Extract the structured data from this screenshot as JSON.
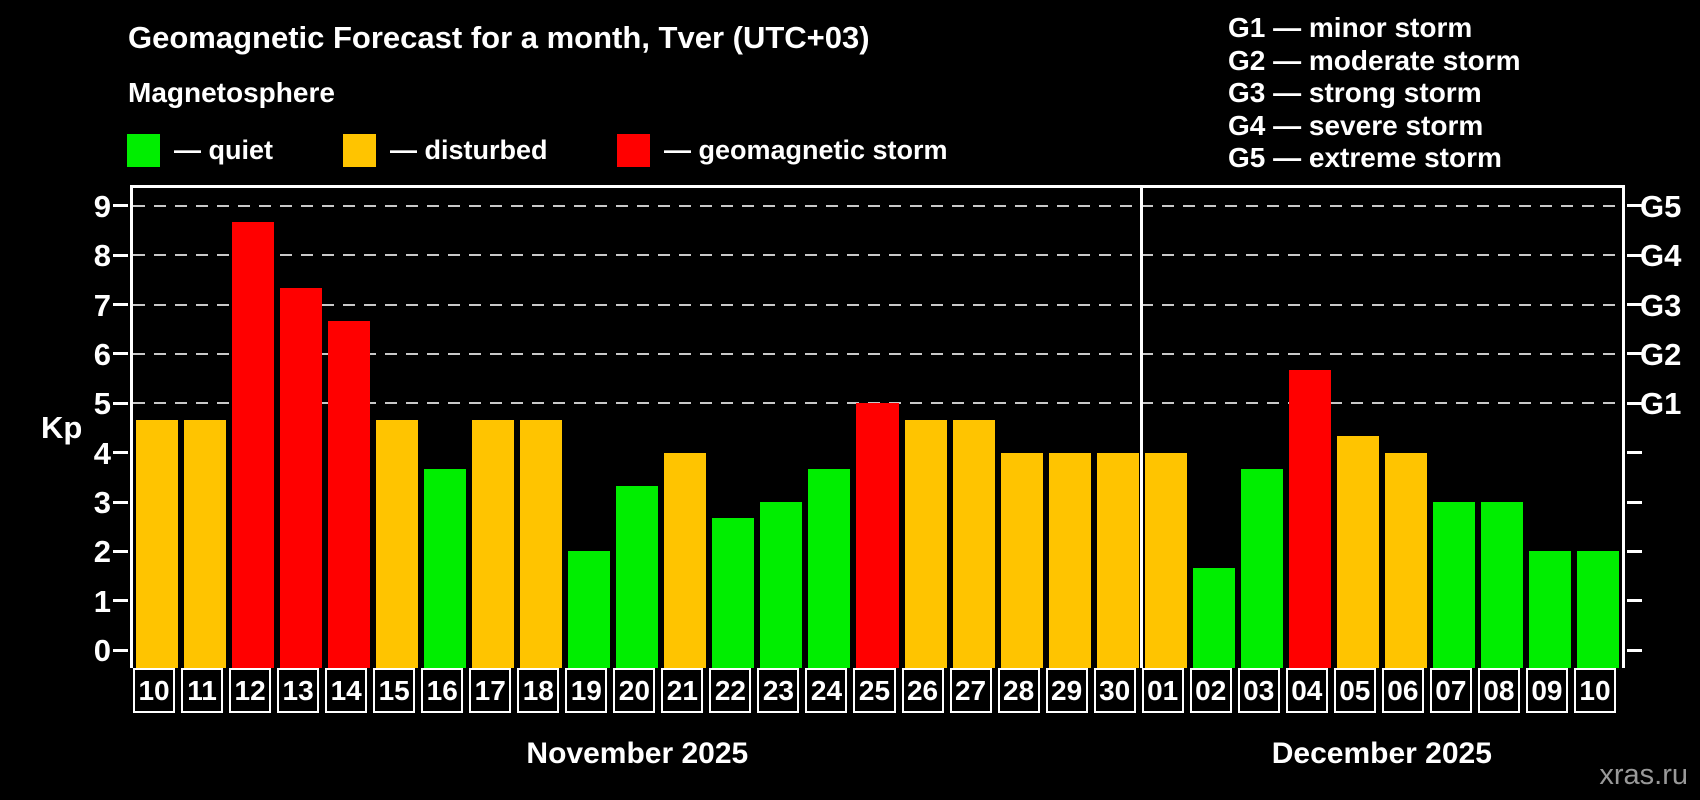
{
  "header": {
    "title": "Geomagnetic Forecast for a month, Tver (UTC+03)",
    "subtitle": "Magnetosphere",
    "legend": [
      {
        "key": "quiet",
        "label": "— quiet",
        "color": "#00ee00"
      },
      {
        "key": "disturbed",
        "label": "— disturbed",
        "color": "#ffc400"
      },
      {
        "key": "storm",
        "label": "— geomagnetic storm",
        "color": "#ff0000"
      }
    ],
    "storm_scale": [
      "G1 — minor storm",
      "G2 — moderate storm",
      "G3 — strong storm",
      "G4 — severe storm",
      "G5 — extreme storm"
    ]
  },
  "chart_data": {
    "type": "bar",
    "ylabel": "Kp",
    "ylim": [
      -0.36,
      9.36
    ],
    "y_ticks": [
      0,
      1,
      2,
      3,
      4,
      5,
      6,
      7,
      8,
      9
    ],
    "gridlines_at": [
      5,
      6,
      7,
      8,
      9
    ],
    "grid_style": "dashed",
    "legend_position": "top",
    "right_axis": [
      {
        "label": "G5",
        "kp": 9
      },
      {
        "label": "G4",
        "kp": 8
      },
      {
        "label": "G3",
        "kp": 7
      },
      {
        "label": "G2",
        "kp": 6
      },
      {
        "label": "G1",
        "kp": 5
      }
    ],
    "months": [
      {
        "label": "November 2025",
        "days": 21
      },
      {
        "label": "December 2025",
        "days": 10
      }
    ],
    "categories": [
      "10",
      "11",
      "12",
      "13",
      "14",
      "15",
      "16",
      "17",
      "18",
      "19",
      "20",
      "21",
      "22",
      "23",
      "24",
      "25",
      "26",
      "27",
      "28",
      "29",
      "30",
      "01",
      "02",
      "03",
      "04",
      "05",
      "06",
      "07",
      "08",
      "09",
      "10"
    ],
    "values": [
      4.67,
      4.67,
      8.67,
      7.33,
      6.67,
      4.67,
      3.67,
      4.67,
      4.67,
      2.0,
      3.33,
      4.0,
      2.67,
      3.0,
      3.67,
      5.0,
      4.67,
      4.67,
      4.0,
      4.0,
      4.0,
      4.0,
      1.67,
      3.67,
      5.67,
      4.33,
      4.0,
      3.0,
      3.0,
      2.0,
      2.0
    ],
    "statuses": [
      "disturbed",
      "disturbed",
      "storm",
      "storm",
      "storm",
      "disturbed",
      "quiet",
      "disturbed",
      "disturbed",
      "quiet",
      "quiet",
      "disturbed",
      "quiet",
      "quiet",
      "quiet",
      "storm",
      "disturbed",
      "disturbed",
      "disturbed",
      "disturbed",
      "disturbed",
      "disturbed",
      "quiet",
      "quiet",
      "storm",
      "disturbed",
      "disturbed",
      "quiet",
      "quiet",
      "quiet",
      "quiet"
    ]
  },
  "footer": {
    "watermark": "xras.ru"
  }
}
